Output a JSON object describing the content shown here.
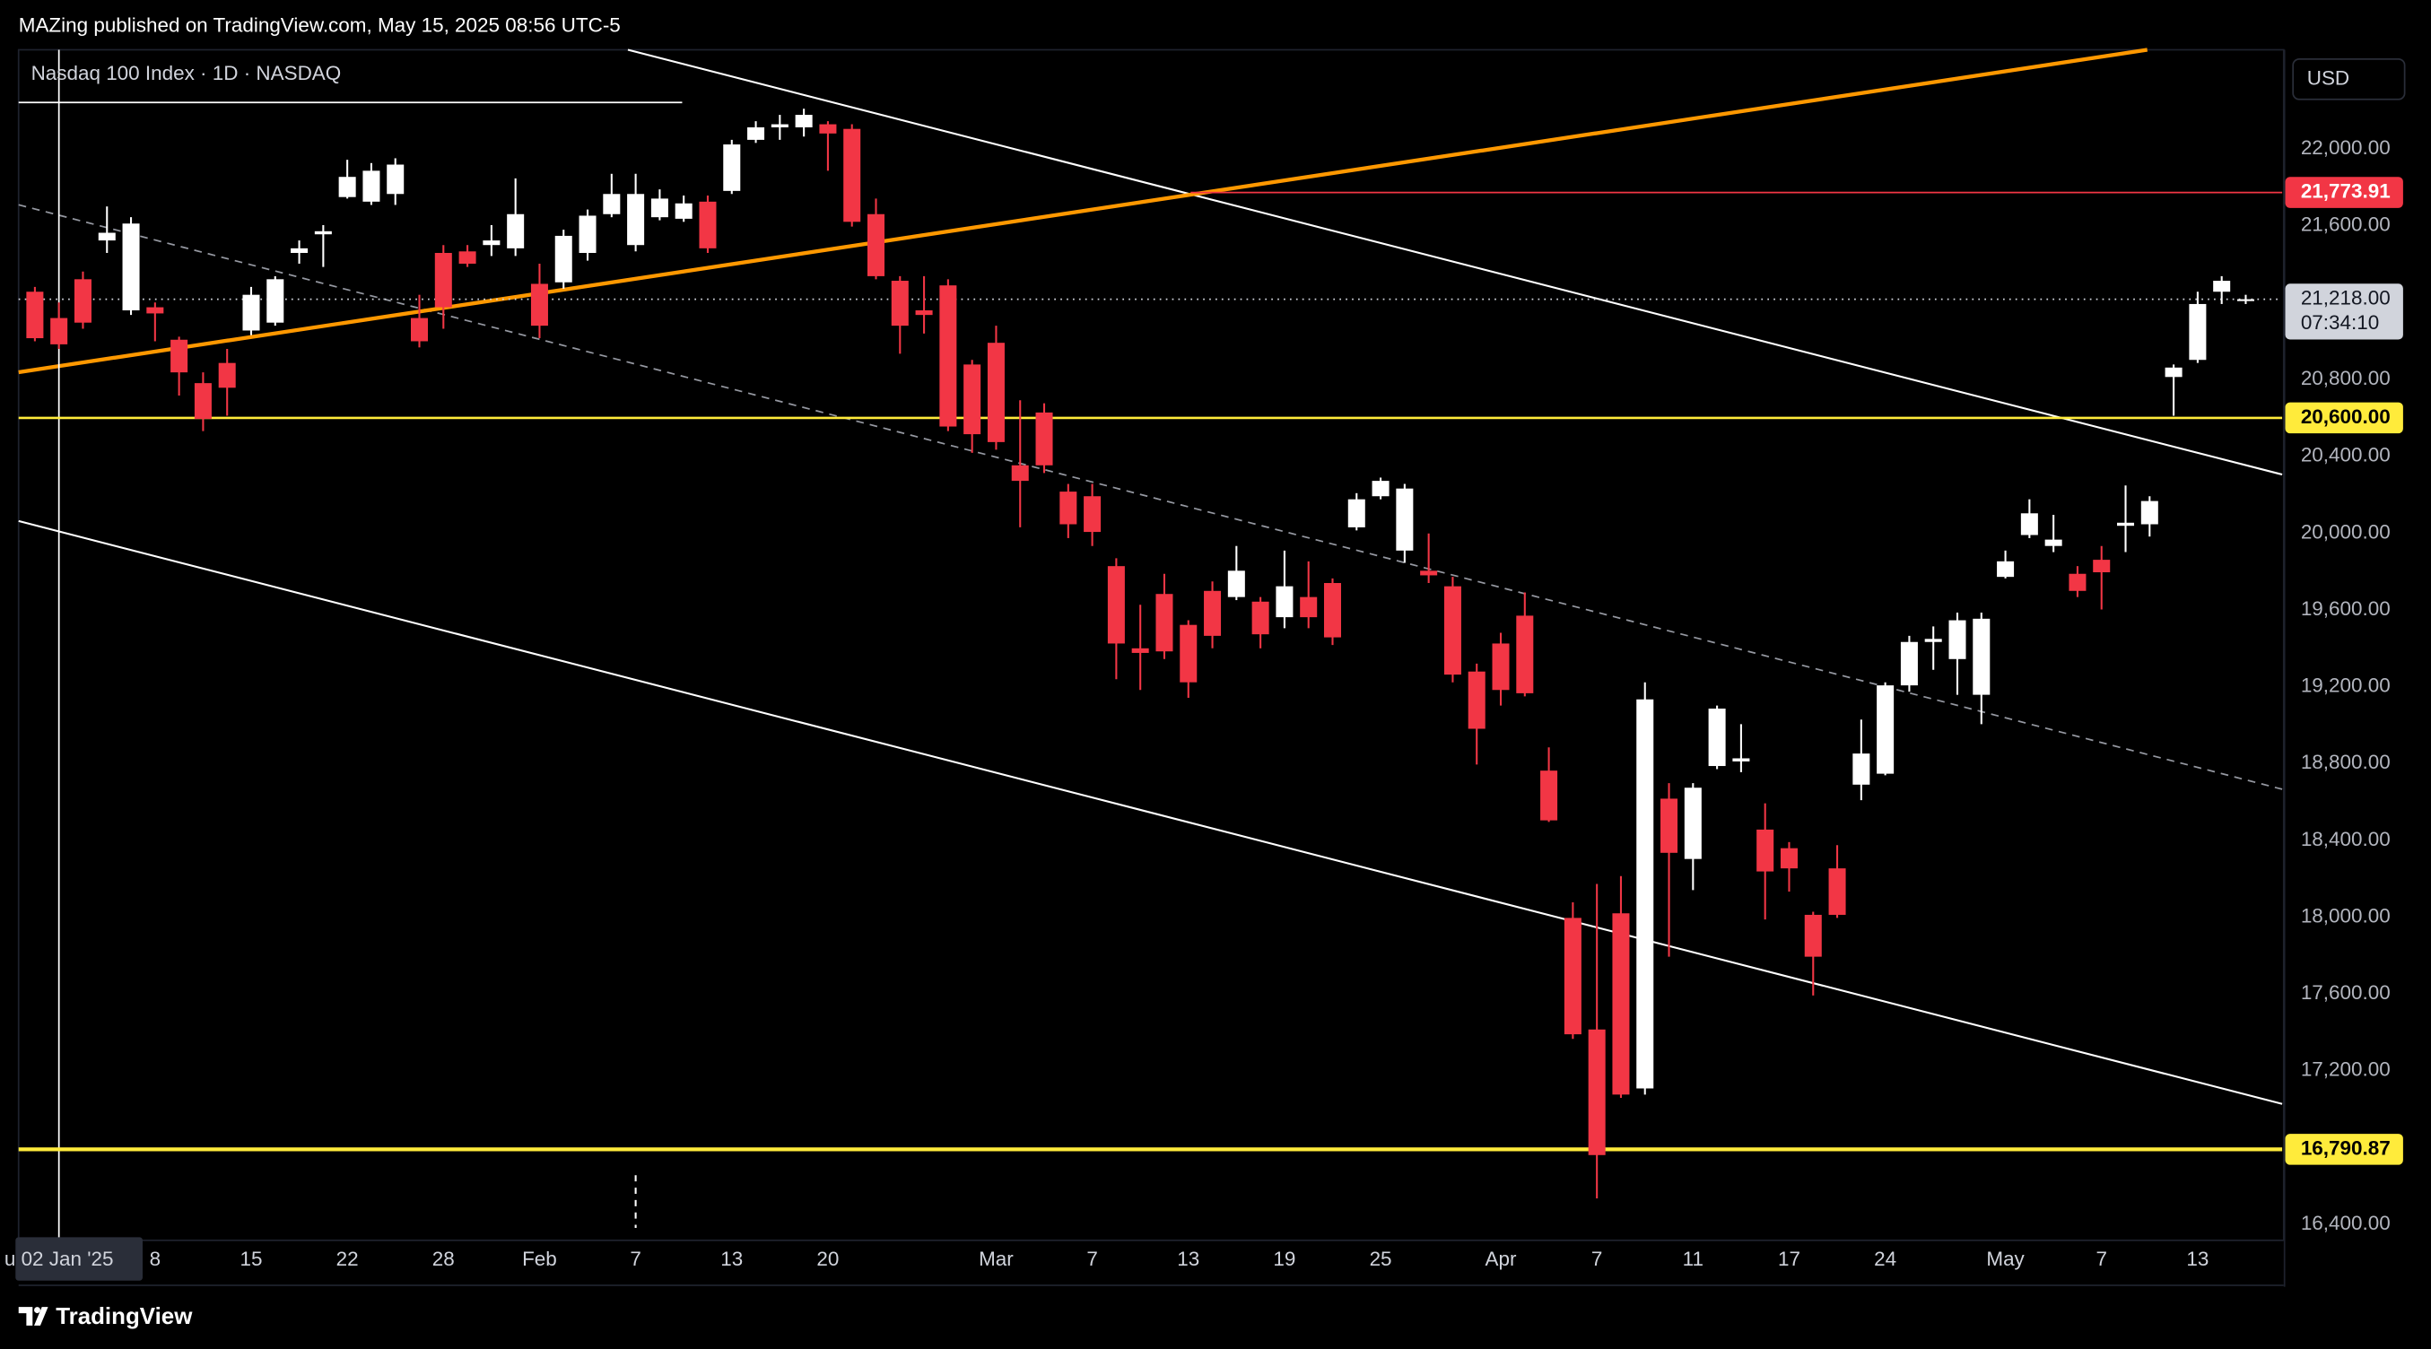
{
  "header": "MAZing published on TradingView.com, May 15, 2025 08:56 UTC-5",
  "footer_brand": "TradingView",
  "chart_data": {
    "type": "candlestick",
    "title": "Nasdaq 100 Index · 1D · NASDAQ",
    "currency": "USD",
    "up_color": "#ffffff",
    "down_color": "#f23645",
    "grid": false,
    "categories": [
      null,
      "u 02 Jan '25",
      null,
      null,
      null,
      "8",
      null,
      null,
      null,
      "15",
      null,
      null,
      null,
      "22",
      null,
      null,
      null,
      "28",
      null,
      null,
      null,
      "Feb",
      null,
      null,
      null,
      "7",
      null,
      null,
      null,
      "13",
      null,
      null,
      null,
      "20",
      null,
      null,
      null,
      null,
      null,
      null,
      "Mar",
      null,
      null,
      null,
      "7",
      null,
      null,
      null,
      "13",
      null,
      null,
      null,
      "19",
      null,
      null,
      null,
      "25",
      null,
      null,
      null,
      null,
      "Apr",
      null,
      null,
      null,
      "7",
      null,
      null,
      null,
      "11",
      null,
      null,
      null,
      "17",
      null,
      null,
      null,
      "24",
      null,
      null,
      null,
      null,
      "May",
      null,
      null,
      null,
      "7",
      null,
      null,
      null,
      "13",
      null,
      null
    ],
    "open": [
      21257,
      21120,
      21322,
      21524,
      21160,
      21176,
      21007,
      20781,
      20886,
      21055,
      21096,
      21459,
      21556,
      21750,
      21726,
      21766,
      21120,
      21459,
      21467,
      21500,
      21483,
      21298,
      21306,
      21459,
      21661,
      21500,
      21645,
      21637,
      21726,
      21782,
      22048,
      22113,
      22113,
      22129,
      22105,
      21661,
      21314,
      21160,
      21290,
      20878,
      20991,
      20353,
      20628,
      20216,
      20192,
      19828,
      19400,
      19683,
      19522,
      19699,
      19667,
      19643,
      19562,
      19667,
      19740,
      20030,
      20192,
      19909,
      19804,
      19723,
      19279,
      19425,
      19570,
      18763,
      17996,
      17415,
      18020,
      17108,
      18617,
      18303,
      18787,
      18811,
      18456,
      18359,
      18012,
      18254,
      18690,
      18747,
      19207,
      19433,
      19344,
      19158,
      19772,
      19990,
      19933,
      19788,
      19861,
      20038,
      20046,
      20813,
      20902,
      21257,
      21209
    ],
    "high": [
      21282,
      21201,
      21362,
      21701,
      21645,
      21201,
      21023,
      20837,
      20959,
      21282,
      21338,
      21524,
      21604,
      21944,
      21927,
      21952,
      21241,
      21500,
      21500,
      21604,
      21847,
      21403,
      21580,
      21685,
      21871,
      21871,
      21790,
      21758,
      21758,
      22048,
      22145,
      22178,
      22210,
      22145,
      22129,
      21742,
      21338,
      21338,
      21322,
      20902,
      21080,
      20692,
      20676,
      20256,
      20256,
      19869,
      19627,
      19788,
      19546,
      19748,
      19933,
      19667,
      19909,
      19853,
      19764,
      20208,
      20289,
      20256,
      19998,
      19772,
      19320,
      19481,
      19691,
      18884,
      18077,
      18173,
      18214,
      19223,
      18698,
      18698,
      19102,
      19005,
      18593,
      18391,
      18028,
      18375,
      19029,
      19223,
      19465,
      19514,
      19586,
      19586,
      19909,
      20176,
      20095,
      19828,
      19933,
      20248,
      20192,
      20878,
      21257,
      21338,
      21241
    ],
    "low": [
      20999,
      20959,
      21064,
      21459,
      21136,
      20999,
      20716,
      20531,
      20611,
      21031,
      21080,
      21403,
      21386,
      21742,
      21709,
      21709,
      20967,
      21064,
      21386,
      21443,
      21443,
      21015,
      21273,
      21419,
      21645,
      21467,
      21629,
      21621,
      21459,
      21766,
      22032,
      22048,
      22065,
      21887,
      21596,
      21322,
      20934,
      21039,
      20531,
      20418,
      20434,
      20030,
      20313,
      19974,
      19933,
      19239,
      19183,
      19344,
      19142,
      19400,
      19651,
      19400,
      19505,
      19505,
      19417,
      20014,
      20176,
      19845,
      19740,
      19223,
      18795,
      19102,
      19150,
      18496,
      17366,
      16535,
      17059,
      17076,
      17794,
      18141,
      18771,
      18755,
      17988,
      18133,
      17592,
      17996,
      18609,
      18739,
      19174,
      19288,
      19158,
      19005,
      19764,
      19974,
      19901,
      19667,
      19602,
      19901,
      19982,
      20611,
      20886,
      21193,
      21193
    ],
    "close": [
      21015,
      20983,
      21096,
      21564,
      21612,
      21144,
      20837,
      20595,
      20757,
      21241,
      21322,
      21483,
      21572,
      21855,
      21887,
      21919,
      20999,
      21176,
      21403,
      21524,
      21661,
      21080,
      21548,
      21653,
      21766,
      21766,
      21742,
      21717,
      21483,
      22024,
      22113,
      22129,
      22178,
      22081,
      21621,
      21338,
      21080,
      21136,
      20555,
      20515,
      20474,
      20272,
      20353,
      20046,
      20006,
      19425,
      19376,
      19384,
      19223,
      19465,
      19804,
      19473,
      19723,
      19562,
      19457,
      20176,
      20272,
      20232,
      19780,
      19263,
      18981,
      19183,
      19166,
      18504,
      17390,
      16761,
      17076,
      19134,
      18335,
      18674,
      19086,
      18827,
      18238,
      18254,
      17794,
      18012,
      18852,
      19207,
      19433,
      19449,
      19546,
      19554,
      19853,
      20103,
      19966,
      19699,
      19796,
      20054,
      20167,
      20862,
      21193,
      21314,
      21218
    ],
    "ylim": [
      16317,
      22517
    ],
    "yticks": [
      {
        "value": 16400,
        "label": "16,400.00"
      },
      {
        "value": 17200,
        "label": "17,200.00"
      },
      {
        "value": 17600,
        "label": "17,600.00"
      },
      {
        "value": 18000,
        "label": "18,000.00"
      },
      {
        "value": 18400,
        "label": "18,400.00"
      },
      {
        "value": 18800,
        "label": "18,800.00"
      },
      {
        "value": 19200,
        "label": "19,200.00"
      },
      {
        "value": 19600,
        "label": "19,600.00"
      },
      {
        "value": 20000,
        "label": "20,000.00"
      },
      {
        "value": 20400,
        "label": "20,400.00"
      },
      {
        "value": 20800,
        "label": "20,800.00"
      },
      {
        "value": 21600,
        "label": "21,600.00"
      },
      {
        "value": 22000,
        "label": "22,000.00"
      }
    ],
    "price_lines": [
      {
        "value": 21773.91,
        "label": "21,773.91",
        "color": "#f23645"
      },
      {
        "value": 20600,
        "label": "20,600.00",
        "color": "#ffeb3b"
      },
      {
        "value": 16790.87,
        "label": "16,790.87",
        "color": "#ffeb3b"
      }
    ],
    "last_price": {
      "value": 21218,
      "label": "21,218.00"
    },
    "countdown": "07:34:10"
  }
}
